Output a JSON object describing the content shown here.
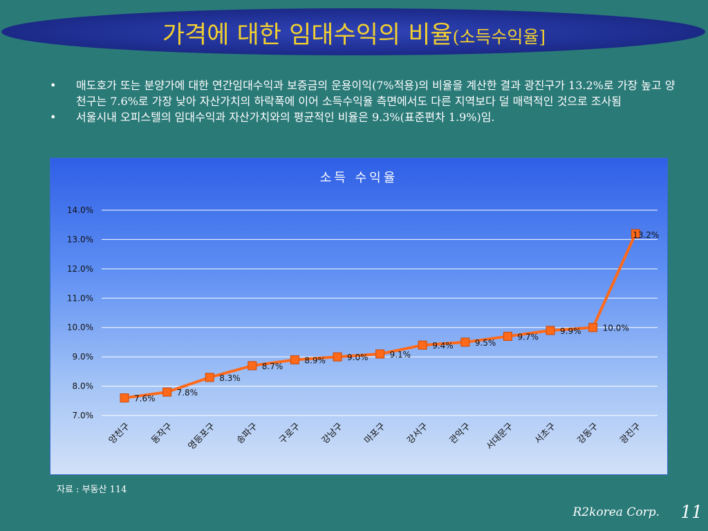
{
  "header": {
    "title_main": "가격에 대한 임대수익의 비율",
    "title_sub": "(소득수익율]"
  },
  "bullets": [
    "매도호가 또는 분양가에 대한 연간임대수익과 보증금의 운용이익(7%적용)의 비율을 계산한 결과 광진구가 13.2%로 가장 높고 양천구는 7.6%로 가장 낮아 자산가치의 하락폭에 이어 소득수익율 측면에서도 다른 지역보다 덜 매력적인 것으로 조사됨",
    "서울시내 오피스텔의 임대수익과 자산가치와의 평균적인 비율은 9.3%(표준편차 1.9%)임."
  ],
  "chart_data": {
    "type": "line",
    "title": "소득 수익율",
    "categories": [
      "양천구",
      "동작구",
      "영등포구",
      "송파구",
      "구로구",
      "강남구",
      "마포구",
      "강서구",
      "관악구",
      "서대문구",
      "서초구",
      "강동구",
      "광진구"
    ],
    "values": [
      7.6,
      7.8,
      8.3,
      8.7,
      8.9,
      9.0,
      9.1,
      9.4,
      9.5,
      9.7,
      9.9,
      10.0,
      13.2
    ],
    "data_labels": [
      "7.6%",
      "7.8%",
      "8.3%",
      "8.7%",
      "8.9%",
      "9.0%",
      "9.1%",
      "9.4%",
      "9.5%",
      "9.7%",
      "9.9%",
      "10.0%",
      "13.2%"
    ],
    "yticks": [
      "7.0%",
      "8.0%",
      "9.0%",
      "10.0%",
      "11.0%",
      "12.0%",
      "13.0%",
      "14.0%"
    ],
    "ylim": [
      7,
      14
    ],
    "grid": true,
    "line_color": "#ff6a1a",
    "marker_color": "#ff6a1a"
  },
  "footer": {
    "source": "자료 : 부동산 114",
    "corp": "R2korea Corp.",
    "page": "11"
  }
}
